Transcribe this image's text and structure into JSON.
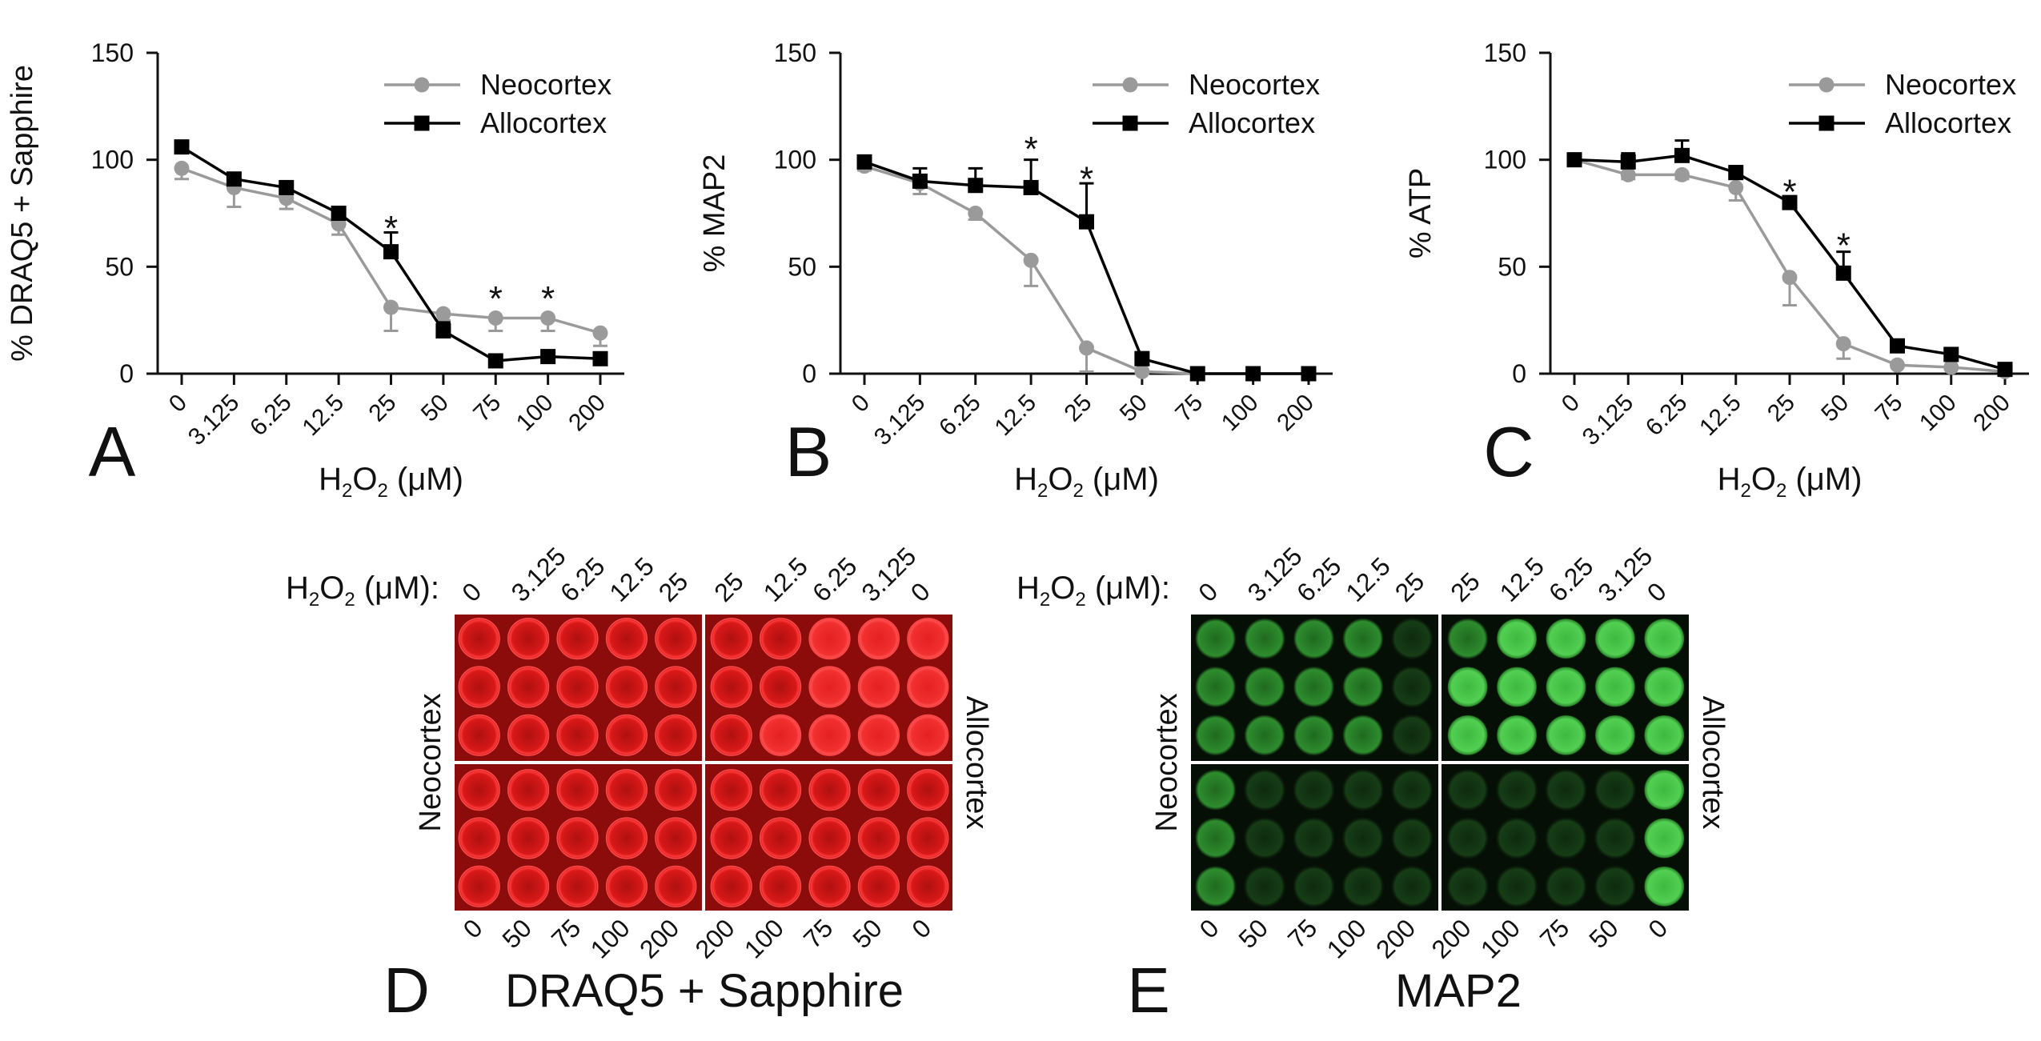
{
  "chart_data": [
    {
      "type": "line",
      "panel_label": "A",
      "categories": [
        "0",
        "3.125",
        "6.25",
        "12.5",
        "25",
        "50",
        "75",
        "100",
        "200"
      ],
      "ylabel": "% DRAQ5 + Sapphire",
      "xlabel": {
        "main": "H",
        "sub1": "2",
        "mid": "O",
        "sub2": "2",
        "tail": " (μM)"
      },
      "ylim": [
        0,
        150
      ],
      "yticks": [
        "0",
        "50",
        "100",
        "150"
      ],
      "series": [
        {
          "name": "Neocortex",
          "color": "#9a9a9a",
          "marker": "circle",
          "values": [
            96,
            87,
            82,
            70,
            31,
            28,
            26,
            26,
            19
          ],
          "errors": [
            5,
            9,
            5,
            5,
            11,
            3,
            6,
            6,
            6
          ]
        },
        {
          "name": "Allocortex",
          "color": "#000000",
          "marker": "square",
          "values": [
            106,
            91,
            87,
            75,
            57,
            20,
            6,
            8,
            7
          ],
          "errors": [
            2,
            2,
            2,
            2,
            9,
            4,
            1,
            1,
            1
          ]
        }
      ],
      "significance": [
        {
          "category_index": 4,
          "y": 70,
          "label": "*"
        },
        {
          "category_index": 6,
          "y": 37,
          "label": "*"
        },
        {
          "category_index": 7,
          "y": 37,
          "label": "*"
        }
      ]
    },
    {
      "type": "line",
      "panel_label": "B",
      "categories": [
        "0",
        "3.125",
        "6.25",
        "12.5",
        "25",
        "50",
        "75",
        "100",
        "200"
      ],
      "ylabel": "% MAP2",
      "xlabel": {
        "main": "H",
        "sub1": "2",
        "mid": "O",
        "sub2": "2",
        "tail": " (μM)"
      },
      "ylim": [
        0,
        150
      ],
      "yticks": [
        "0",
        "50",
        "100",
        "150"
      ],
      "series": [
        {
          "name": "Neocortex",
          "color": "#9a9a9a",
          "marker": "circle",
          "values": [
            97,
            89,
            75,
            53,
            12,
            1,
            0,
            0,
            0
          ],
          "errors": [
            2,
            5,
            3,
            12,
            11,
            1,
            0,
            0,
            0
          ]
        },
        {
          "name": "Allocortex",
          "color": "#000000",
          "marker": "square",
          "values": [
            99,
            90,
            88,
            87,
            71,
            7,
            0,
            0,
            0
          ],
          "errors": [
            2,
            6,
            8,
            13,
            18,
            3,
            0,
            0,
            0
          ]
        }
      ],
      "significance": [
        {
          "category_index": 3,
          "y": 107,
          "label": "*"
        },
        {
          "category_index": 4,
          "y": 93,
          "label": "*"
        }
      ]
    },
    {
      "type": "line",
      "panel_label": "C",
      "categories": [
        "0",
        "3.125",
        "6.25",
        "12.5",
        "25",
        "50",
        "75",
        "100",
        "200"
      ],
      "ylabel": "% ATP",
      "xlabel": {
        "main": "H",
        "sub1": "2",
        "mid": "O",
        "sub2": "2",
        "tail": " (μM)"
      },
      "ylim": [
        0,
        150
      ],
      "yticks": [
        "0",
        "50",
        "100",
        "150"
      ],
      "series": [
        {
          "name": "Neocortex",
          "color": "#9a9a9a",
          "marker": "circle",
          "values": [
            100,
            93,
            93,
            87,
            45,
            14,
            4,
            3,
            1
          ],
          "errors": [
            2,
            2,
            2,
            6,
            13,
            7,
            1,
            1,
            1
          ]
        },
        {
          "name": "Allocortex",
          "color": "#000000",
          "marker": "square",
          "values": [
            100,
            99,
            102,
            94,
            80,
            47,
            13,
            9,
            2
          ],
          "errors": [
            2,
            4,
            7,
            3,
            2,
            10,
            2,
            1,
            1
          ]
        }
      ],
      "significance": [
        {
          "category_index": 4,
          "y": 87,
          "label": "*"
        },
        {
          "category_index": 5,
          "y": 62,
          "label": "*"
        }
      ]
    }
  ],
  "plates": [
    {
      "panel_label": "D",
      "title": "DRAQ5 + Sapphire",
      "color": "red",
      "prefix": {
        "main": "H",
        "sub1": "2",
        "mid": "O",
        "sub2": "2",
        "tail": " (μM):"
      },
      "top_labels": [
        "0",
        "3.125",
        "6.25",
        "12.5",
        "25",
        "25",
        "12.5",
        "6.25",
        "3.125",
        "0"
      ],
      "bottom_labels": [
        "0",
        "50",
        "75",
        "100",
        "200",
        "200",
        "100",
        "75",
        "50",
        "0"
      ],
      "left_label": "Neocortex",
      "right_label": "Allocortex"
    },
    {
      "panel_label": "E",
      "title": "MAP2",
      "color": "green",
      "prefix": {
        "main": "H",
        "sub1": "2",
        "mid": "O",
        "sub2": "2",
        "tail": " (μM):"
      },
      "top_labels": [
        "0",
        "3.125",
        "6.25",
        "12.5",
        "25",
        "25",
        "12.5",
        "6.25",
        "3.125",
        "0"
      ],
      "bottom_labels": [
        "0",
        "50",
        "75",
        "100",
        "200",
        "200",
        "100",
        "75",
        "50",
        "0"
      ],
      "left_label": "Neocortex",
      "right_label": "Allocortex"
    }
  ]
}
